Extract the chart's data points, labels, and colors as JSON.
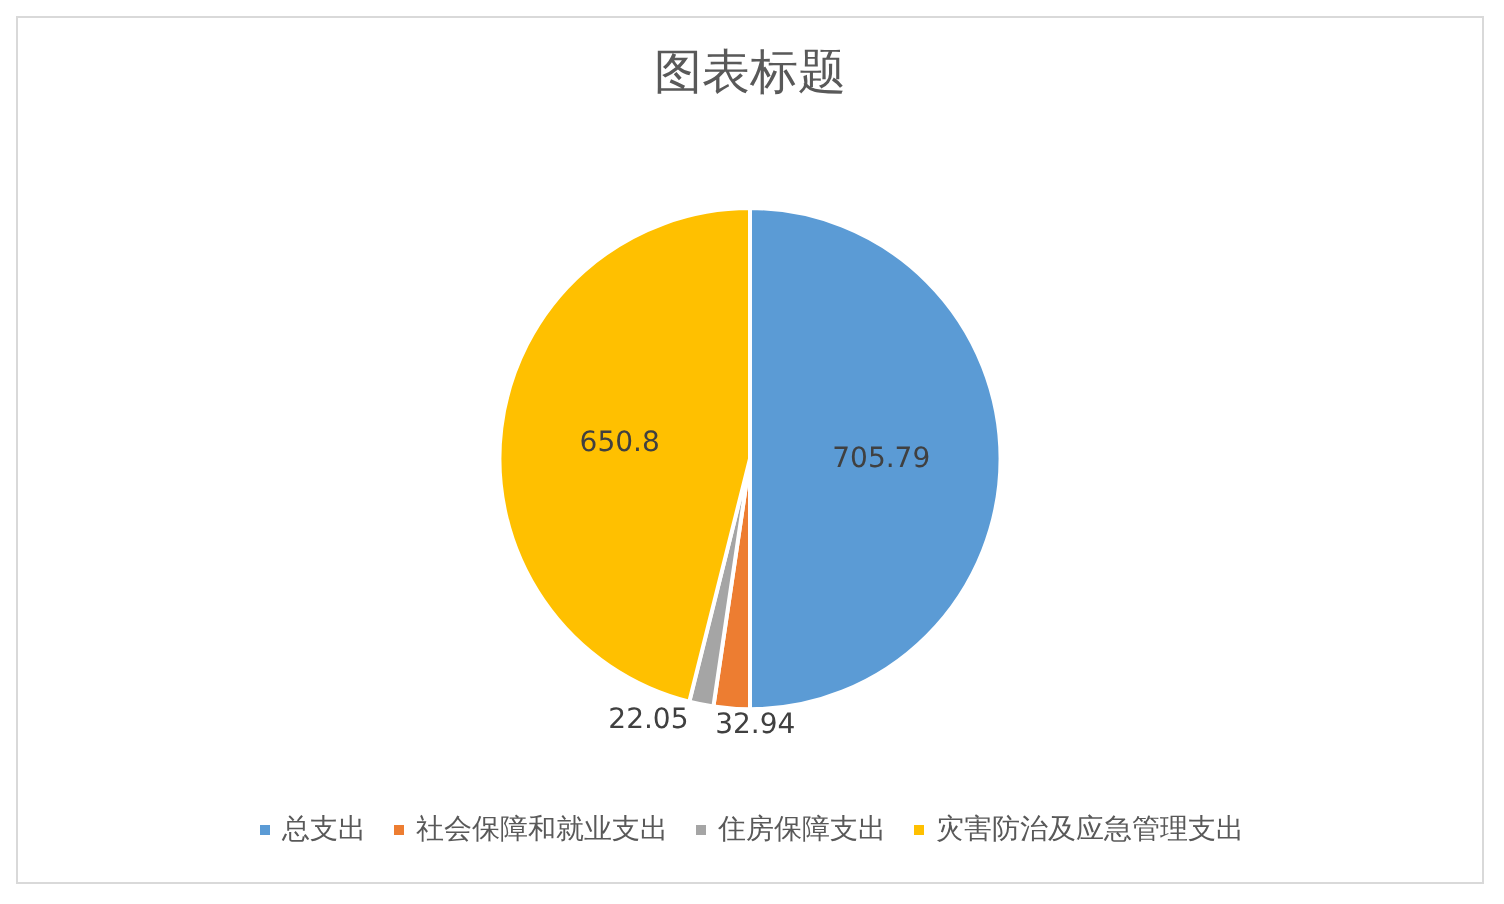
{
  "chart_data": {
    "type": "pie",
    "title": "图表标题",
    "categories": [
      "总支出",
      "社会保障和就业支出",
      "住房保障支出",
      "灾害防治及应急管理支出"
    ],
    "values": [
      705.79,
      32.94,
      22.05,
      650.8
    ],
    "colors": [
      "#5b9bd5",
      "#ed7d31",
      "#a5a5a5",
      "#ffc000"
    ],
    "data_labels": true,
    "legend": "bottom"
  }
}
